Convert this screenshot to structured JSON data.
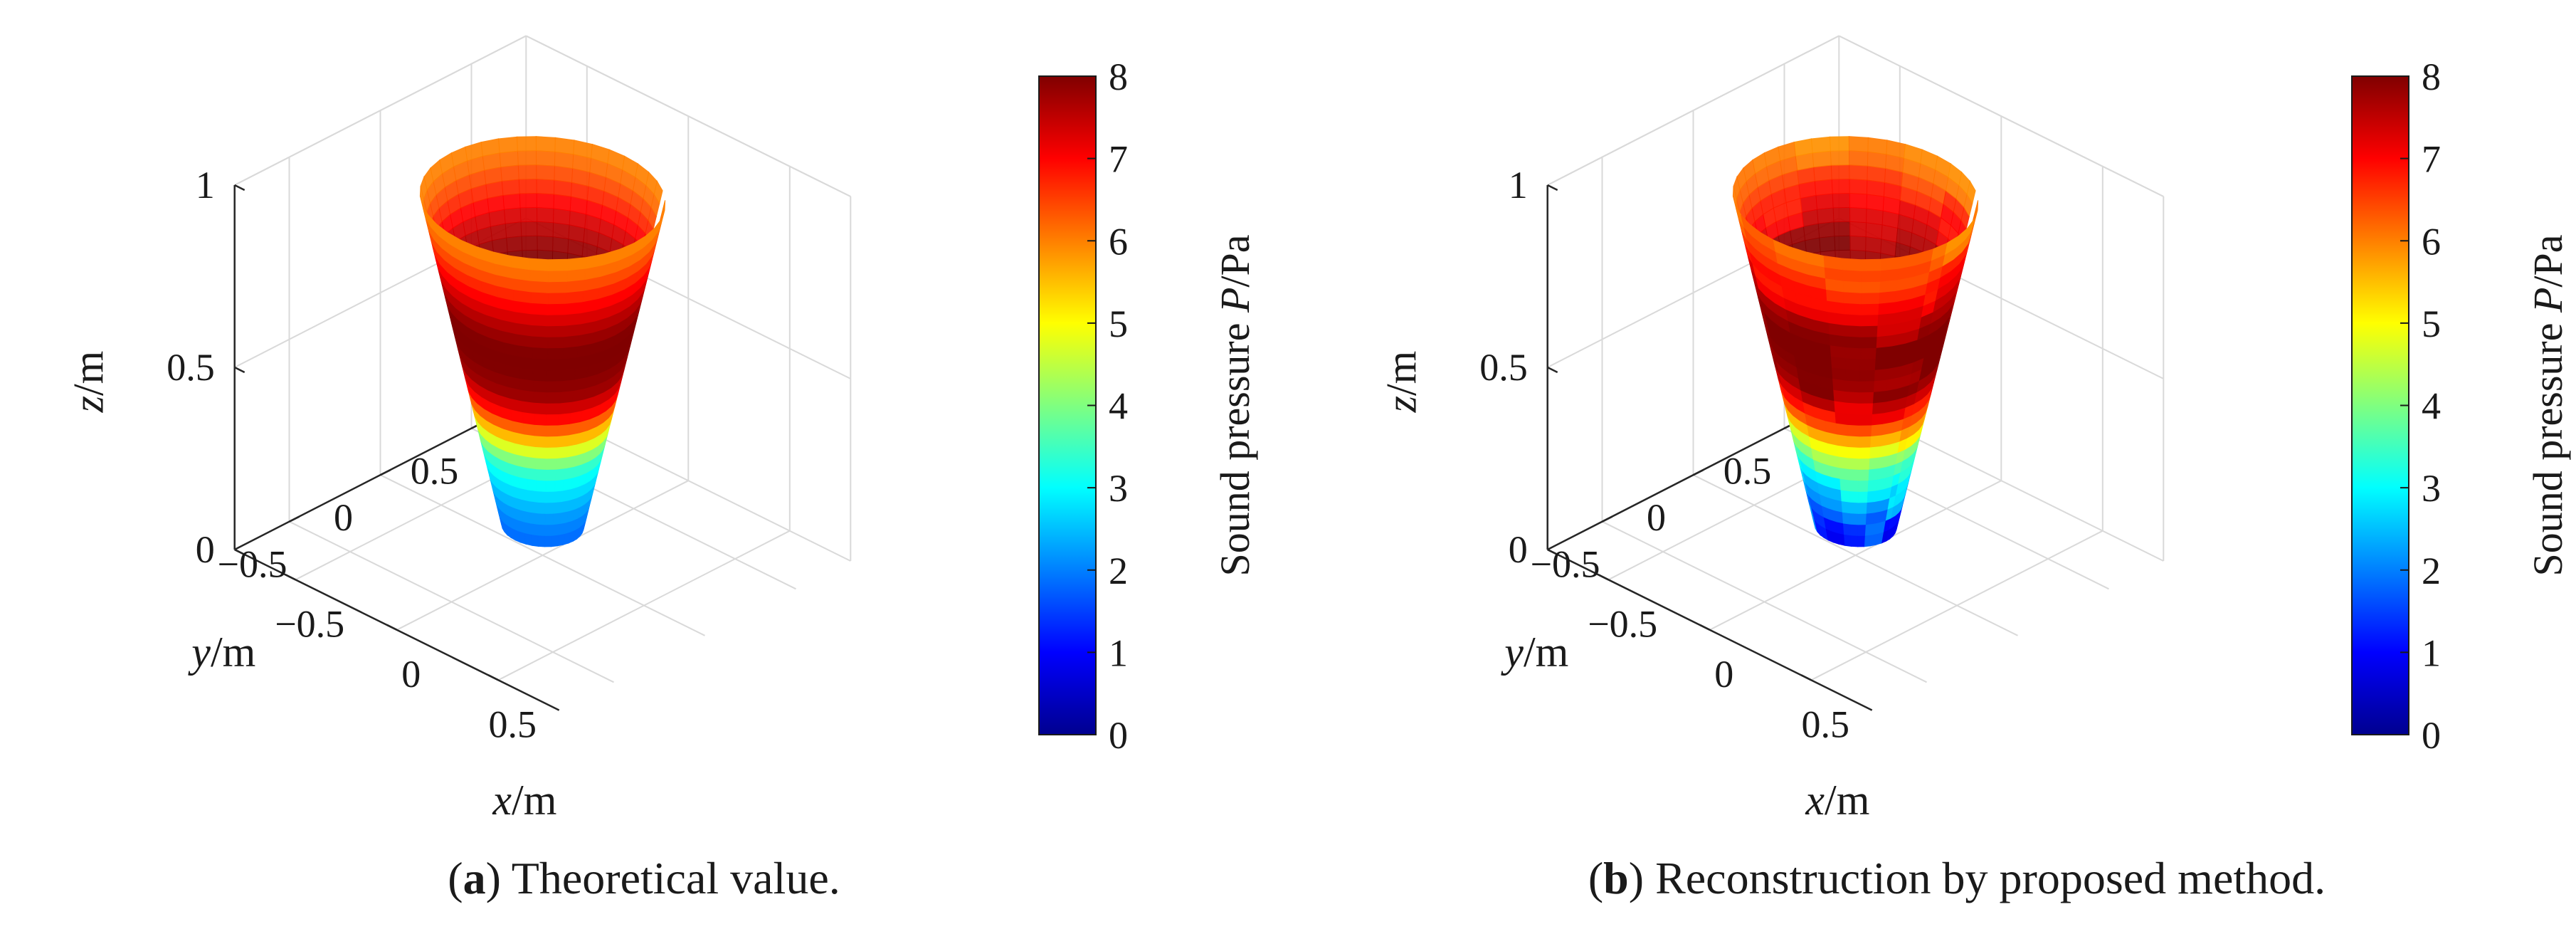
{
  "figures": [
    {
      "label": "a",
      "caption": "Theoretical value."
    },
    {
      "label": "b",
      "caption": "Reconstruction by proposed method."
    }
  ],
  "chart_data": [
    {
      "type": "surface3d",
      "title": "",
      "xlabel_var": "x",
      "xlabel_unit": "/m",
      "ylabel_var": "y",
      "ylabel_unit": "/m",
      "zlabel_var": "z",
      "zlabel_unit": "/m",
      "xlim": [
        -0.8,
        0.8
      ],
      "ylim": [
        -0.8,
        0.8
      ],
      "zlim": [
        0,
        1
      ],
      "xticks": [
        -0.5,
        0,
        0.5
      ],
      "xtick_labels": [
        "−0.5",
        "0",
        "0.5"
      ],
      "yticks": [
        0.5,
        0,
        -0.5
      ],
      "ytick_labels": [
        "0.5",
        "0",
        "−0.5"
      ],
      "zticks": [
        0,
        0.5,
        1
      ],
      "ztick_labels": [
        "0",
        "0.5",
        "1"
      ],
      "grid": true,
      "surface": {
        "shape": "truncated cone",
        "bottom_radius": 0.15,
        "top_radius": 0.45,
        "z_range": [
          0.08,
          0.98
        ]
      },
      "pressure_profile": {
        "z": [
          0.08,
          0.15,
          0.22,
          0.3,
          0.36,
          0.42,
          0.48,
          0.55,
          0.62,
          0.68,
          0.74,
          0.8,
          0.86,
          0.92,
          0.98
        ],
        "P": [
          1.8,
          2.1,
          2.6,
          3.3,
          4.4,
          5.8,
          7.0,
          7.8,
          8.0,
          8.0,
          7.7,
          7.2,
          6.7,
          6.2,
          5.9
        ]
      },
      "noise": 0,
      "colorbar": {
        "label_text": "Sound pressure ",
        "label_var": "P",
        "label_unit": "/Pa",
        "min": 0,
        "max": 8,
        "ticks": [
          0,
          1,
          2,
          3,
          4,
          5,
          6,
          7,
          8
        ],
        "tick_labels": [
          "0",
          "1",
          "2",
          "3",
          "4",
          "5",
          "6",
          "7",
          "8"
        ],
        "colormap": "jet"
      }
    },
    {
      "type": "surface3d",
      "title": "",
      "xlabel_var": "x",
      "xlabel_unit": "/m",
      "ylabel_var": "y",
      "ylabel_unit": "/m",
      "zlabel_var": "z",
      "zlabel_unit": "/m",
      "xlim": [
        -0.8,
        0.8
      ],
      "ylim": [
        -0.8,
        0.8
      ],
      "zlim": [
        0,
        1
      ],
      "xticks": [
        -0.5,
        0,
        0.5
      ],
      "xtick_labels": [
        "−0.5",
        "0",
        "0.5"
      ],
      "yticks": [
        0.5,
        0,
        -0.5
      ],
      "ytick_labels": [
        "0.5",
        "0",
        "−0.5"
      ],
      "zticks": [
        0,
        0.5,
        1
      ],
      "ztick_labels": [
        "0",
        "0.5",
        "1"
      ],
      "grid": true,
      "surface": {
        "shape": "truncated cone",
        "bottom_radius": 0.15,
        "top_radius": 0.45,
        "z_range": [
          0.08,
          0.98
        ]
      },
      "pressure_profile": {
        "z": [
          0.08,
          0.15,
          0.22,
          0.3,
          0.36,
          0.42,
          0.48,
          0.55,
          0.62,
          0.68,
          0.74,
          0.8,
          0.86,
          0.92,
          0.98
        ],
        "P": [
          1.4,
          1.7,
          2.6,
          3.6,
          4.6,
          5.9,
          7.0,
          7.8,
          8.0,
          8.0,
          7.7,
          7.2,
          6.8,
          6.3,
          6.0
        ]
      },
      "noise": 0.7,
      "colorbar": {
        "label_text": "Sound pressure ",
        "label_var": "P",
        "label_unit": "/Pa",
        "min": 0,
        "max": 8,
        "ticks": [
          0,
          1,
          2,
          3,
          4,
          5,
          6,
          7,
          8
        ],
        "tick_labels": [
          "0",
          "1",
          "2",
          "3",
          "4",
          "5",
          "6",
          "7",
          "8"
        ],
        "colormap": "jet"
      }
    }
  ]
}
